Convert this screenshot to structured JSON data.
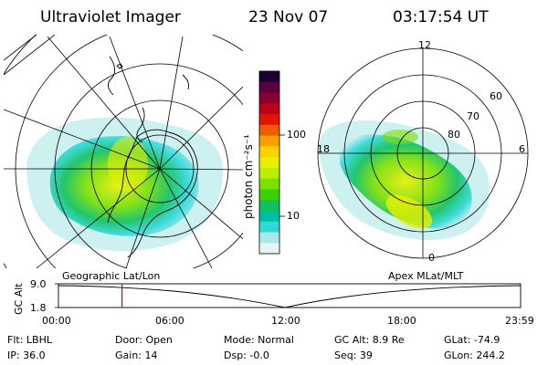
{
  "header": {
    "instrument": "Ultraviolet Imager",
    "date": "23 Nov 07",
    "time": "03:17:54 UT"
  },
  "geo_panel": {
    "label": "Geographic Lat/Lon"
  },
  "mag_panel": {
    "label": "Apex MLat/MLT",
    "mlt_labels": [
      "12",
      "18",
      "6",
      "0"
    ],
    "lat_labels": [
      "60",
      "70",
      "80"
    ]
  },
  "colorbar": {
    "unit": "photon cm⁻²s⁻¹",
    "ticks": [
      "100",
      "10"
    ],
    "colors": [
      "#1a0033",
      "#5a0040",
      "#8a0030",
      "#c00018",
      "#e21500",
      "#f05a00",
      "#f8a000",
      "#ffd000",
      "#e8f000",
      "#b8f000",
      "#7ce000",
      "#3cd000",
      "#10c060",
      "#00c0a0",
      "#30d8d8",
      "#a8e8e8",
      "#e8f4f4"
    ]
  },
  "timeline": {
    "ylabel": "GC Alt",
    "yticks": [
      "9.0",
      "1.8"
    ],
    "xticks": [
      "00:00",
      "06:00",
      "12:00",
      "18:00",
      "23:59"
    ],
    "marker_time_hours": 3.3,
    "marker_color": "#e00000"
  },
  "info": {
    "filter": "Flt: LBHL",
    "ip": "IP: 36.0",
    "door": "Door: Open",
    "gain": "Gain: 14",
    "mode": "Mode: Normal",
    "dsp": "Dsp:  -0.0",
    "gc_alt": "GC Alt: 8.9 Re",
    "seq": "Seq: 39",
    "glat": "GLat: -74.9",
    "glon": "GLon: 244.2"
  }
}
